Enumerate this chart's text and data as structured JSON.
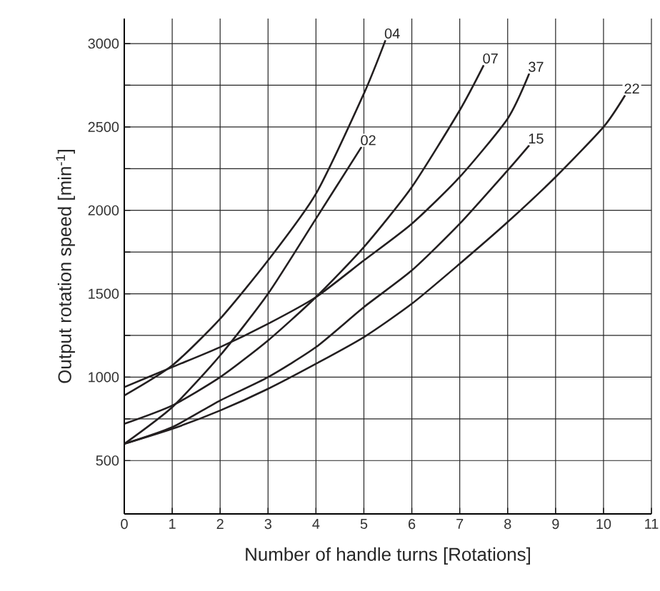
{
  "chart_data": {
    "type": "line",
    "xlabel": "Number of handle turns [Rotations]",
    "ylabel": "Output rotation speed [min$^{-1}$]",
    "xlim": [
      0,
      11
    ],
    "ylim": [
      180,
      3150
    ],
    "xticks": [
      0,
      1,
      2,
      3,
      4,
      5,
      6,
      7,
      8,
      9,
      10,
      11
    ],
    "yticks": [
      500,
      {
        "value": 750,
        "label": null
      },
      1000,
      {
        "value": 1250,
        "label": null
      },
      1500,
      {
        "value": 1750,
        "label": null
      },
      2000,
      {
        "value": 2250,
        "label": null
      },
      2500,
      {
        "value": 2750,
        "label": null
      },
      3000
    ],
    "grid": true,
    "marker": "none",
    "series": [
      {
        "name": "04",
        "color": "#231f20",
        "x": [
          0,
          1,
          2,
          3,
          4,
          5,
          5.45
        ],
        "values": [
          890,
          1070,
          1350,
          1700,
          2100,
          2700,
          3020
        ]
      },
      {
        "name": "02",
        "color": "#231f20",
        "x": [
          0,
          1,
          2,
          3,
          4,
          4.95
        ],
        "values": [
          600,
          820,
          1130,
          1500,
          1950,
          2380
        ]
      },
      {
        "name": "07",
        "color": "#231f20",
        "x": [
          0,
          1,
          2,
          3,
          4,
          5,
          6,
          7,
          7.5
        ],
        "values": [
          720,
          830,
          1000,
          1220,
          1480,
          1780,
          2140,
          2600,
          2870
        ]
      },
      {
        "name": "37",
        "color": "#231f20",
        "x": [
          0,
          1,
          2,
          3,
          4,
          5,
          6,
          7,
          8,
          8.45
        ],
        "values": [
          940,
          1060,
          1180,
          1320,
          1480,
          1700,
          1920,
          2200,
          2550,
          2820
        ]
      },
      {
        "name": "15",
        "color": "#231f20",
        "x": [
          0,
          1,
          2,
          3,
          4,
          5,
          6,
          7,
          8,
          8.45
        ],
        "values": [
          600,
          700,
          860,
          1000,
          1180,
          1420,
          1640,
          1920,
          2240,
          2390
        ]
      },
      {
        "name": "22",
        "color": "#231f20",
        "x": [
          0,
          1,
          2,
          3,
          4,
          5,
          6,
          7,
          8,
          9,
          10,
          10.45
        ],
        "values": [
          600,
          690,
          800,
          930,
          1080,
          1240,
          1440,
          1680,
          1930,
          2200,
          2500,
          2690
        ]
      }
    ]
  }
}
